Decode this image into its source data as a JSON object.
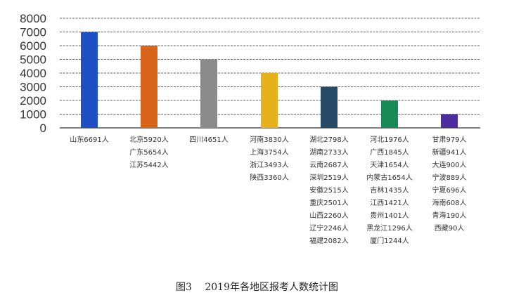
{
  "chart_data": {
    "type": "bar",
    "title": "",
    "xlabel": "",
    "ylabel": "",
    "ylim": [
      0,
      8000
    ],
    "yticks": [
      0,
      1000,
      2000,
      3000,
      4000,
      5000,
      6000,
      7000,
      8000
    ],
    "grid": true,
    "legend": "none",
    "values": [
      7000,
      6000,
      5000,
      4000,
      3000,
      2000,
      1000
    ],
    "colors": [
      "#1f4fc4",
      "#d9651a",
      "#8a8a8a",
      "#e6b11a",
      "#274a66",
      "#178a55",
      "#4b2d9e"
    ],
    "labels": [
      [
        "山东6691人"
      ],
      [
        "北京5920人",
        "广东5654人",
        "江苏5442人"
      ],
      [
        "四川4651人"
      ],
      [
        "河南3830人",
        "上海3754人",
        "浙江3493人",
        "陕西3360人"
      ],
      [
        "湖北2798人",
        "湖南2733人",
        "云南2687人",
        "深圳2519人",
        "安徽2515人",
        "重庆2501人",
        "山西2260人",
        "辽宁2246人",
        "福建2082人"
      ],
      [
        "河北1976人",
        "广西1845人",
        "天津1654人",
        "内蒙古1654人",
        "吉林1435人",
        "江西1421人",
        "贵州1401人",
        "黑龙江1296人",
        "厦门1244人"
      ],
      [
        "甘肃979人",
        "新疆941人",
        "大连900人",
        "宁波889人",
        "宁夏696人",
        "海南608人",
        "青海190人",
        "西藏90人"
      ]
    ]
  },
  "caption": "图3　 2019年各地区报考人数统计图"
}
